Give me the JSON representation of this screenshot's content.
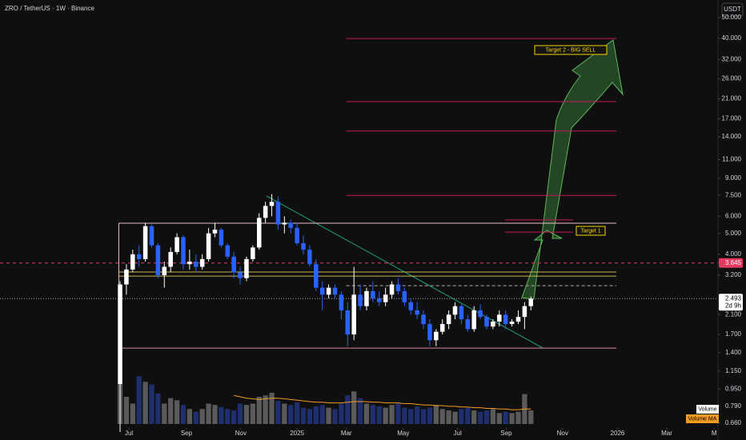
{
  "chart_data": {
    "type": "candlestick",
    "title": "ZRO / TetherUS · 1W · Binance",
    "currency": "USDT",
    "log_scale": true,
    "ylim": [
      0.643,
      60.3
    ],
    "yticks": [
      {
        "value": 50,
        "label": "50.000"
      },
      {
        "value": 40,
        "label": "40.000"
      },
      {
        "value": 32,
        "label": "32.000"
      },
      {
        "value": 26,
        "label": "26.000"
      },
      {
        "value": 21,
        "label": "21.000"
      },
      {
        "value": 17,
        "label": "17.000"
      },
      {
        "value": 14,
        "label": "14.000"
      },
      {
        "value": 11,
        "label": "11.000"
      },
      {
        "value": 9,
        "label": "9.000"
      },
      {
        "value": 7.5,
        "label": "7.500"
      },
      {
        "value": 6,
        "label": "6.000"
      },
      {
        "value": 5,
        "label": "5.000"
      },
      {
        "value": 4,
        "label": "4.000"
      },
      {
        "value": 3.2,
        "label": "3.200"
      },
      {
        "value": 2.1,
        "label": "2.100"
      },
      {
        "value": 1.7,
        "label": "1.700"
      },
      {
        "value": 1.4,
        "label": "1.400"
      },
      {
        "value": 1.15,
        "label": "1.150"
      },
      {
        "value": 0.95,
        "label": "0.950"
      },
      {
        "value": 0.79,
        "label": "0.790"
      },
      {
        "value": 0.66,
        "label": "0.660"
      }
    ],
    "xlim": [
      -19,
      94.6
    ],
    "xticks": [
      {
        "value": 1.4,
        "label": "Jul"
      },
      {
        "value": 10.5,
        "label": "Sep"
      },
      {
        "value": 19.1,
        "label": "Nov"
      },
      {
        "value": 28,
        "label": "2025"
      },
      {
        "value": 35.8,
        "label": "Mar"
      },
      {
        "value": 44.8,
        "label": "May"
      },
      {
        "value": 53.4,
        "label": "Jul"
      },
      {
        "value": 61.1,
        "label": "Sep"
      },
      {
        "value": 70,
        "label": "Nov"
      },
      {
        "value": 78.7,
        "label": "2026"
      },
      {
        "value": 86.5,
        "label": "Mar"
      },
      {
        "value": 94,
        "label": "M"
      }
    ],
    "up_color": "#ffffff",
    "down_color": "#2962ff",
    "ohlc": [
      [
        1.0,
        3.0,
        0.6,
        2.9
      ],
      [
        2.9,
        3.6,
        2.6,
        3.4
      ],
      [
        3.4,
        4.2,
        3.3,
        4.0
      ],
      [
        4.0,
        4.4,
        3.5,
        3.8
      ],
      [
        3.8,
        5.6,
        3.7,
        5.4
      ],
      [
        5.4,
        5.5,
        4.3,
        4.4
      ],
      [
        4.4,
        4.5,
        3.1,
        3.2
      ],
      [
        3.2,
        3.7,
        2.8,
        3.5
      ],
      [
        3.5,
        4.3,
        3.3,
        4.1
      ],
      [
        4.1,
        5.0,
        4.0,
        4.8
      ],
      [
        4.8,
        4.9,
        3.4,
        3.6
      ],
      [
        3.6,
        4.2,
        3.4,
        3.7
      ],
      [
        3.7,
        4.0,
        3.3,
        3.5
      ],
      [
        3.5,
        4.0,
        3.4,
        3.8
      ],
      [
        3.8,
        5.3,
        3.7,
        5.0
      ],
      [
        5.0,
        5.6,
        4.8,
        5.2
      ],
      [
        5.2,
        5.3,
        4.3,
        4.4
      ],
      [
        4.4,
        4.5,
        3.8,
        3.9
      ],
      [
        3.9,
        4.1,
        3.1,
        3.3
      ],
      [
        3.3,
        3.5,
        2.9,
        3.1
      ],
      [
        3.1,
        3.9,
        3.0,
        3.8
      ],
      [
        3.8,
        4.4,
        3.7,
        4.3
      ],
      [
        4.3,
        6.2,
        4.2,
        5.9
      ],
      [
        5.9,
        7.0,
        5.6,
        6.7
      ],
      [
        6.7,
        7.6,
        6.0,
        7.0
      ],
      [
        7.0,
        7.4,
        5.2,
        5.5
      ],
      [
        5.5,
        6.0,
        5.0,
        5.6
      ],
      [
        5.6,
        5.8,
        5.0,
        5.3
      ],
      [
        5.3,
        5.6,
        4.4,
        4.5
      ],
      [
        4.5,
        4.9,
        4.0,
        4.2
      ],
      [
        4.2,
        4.4,
        3.5,
        3.6
      ],
      [
        3.6,
        3.8,
        2.7,
        2.8
      ],
      [
        2.8,
        3.0,
        2.2,
        2.6
      ],
      [
        2.6,
        2.9,
        2.5,
        2.8
      ],
      [
        2.8,
        2.9,
        2.5,
        2.6
      ],
      [
        2.6,
        2.7,
        2.0,
        2.2
      ],
      [
        2.2,
        2.4,
        1.5,
        1.7
      ],
      [
        1.7,
        3.5,
        1.6,
        2.6
      ],
      [
        2.6,
        2.9,
        2.2,
        2.3
      ],
      [
        2.3,
        2.8,
        2.2,
        2.7
      ],
      [
        2.7,
        3.0,
        2.4,
        2.5
      ],
      [
        2.5,
        2.7,
        2.3,
        2.4
      ],
      [
        2.4,
        2.8,
        2.3,
        2.6
      ],
      [
        2.6,
        3.0,
        2.5,
        2.9
      ],
      [
        2.9,
        3.1,
        2.6,
        2.7
      ],
      [
        2.7,
        2.8,
        2.3,
        2.4
      ],
      [
        2.4,
        2.5,
        2.1,
        2.2
      ],
      [
        2.2,
        2.4,
        2.0,
        2.1
      ],
      [
        2.1,
        2.2,
        1.8,
        1.9
      ],
      [
        1.9,
        2.0,
        1.5,
        1.6
      ],
      [
        1.6,
        1.8,
        1.5,
        1.75
      ],
      [
        1.75,
        2.0,
        1.7,
        1.9
      ],
      [
        1.9,
        2.2,
        1.8,
        2.1
      ],
      [
        2.1,
        2.4,
        2.0,
        2.3
      ],
      [
        2.3,
        2.35,
        1.9,
        2.0
      ],
      [
        2.0,
        2.1,
        1.75,
        1.8
      ],
      [
        1.8,
        2.3,
        1.75,
        2.2
      ],
      [
        2.2,
        2.35,
        2.0,
        2.05
      ],
      [
        2.05,
        2.1,
        1.8,
        1.85
      ],
      [
        1.85,
        2.0,
        1.8,
        1.95
      ],
      [
        1.95,
        2.2,
        1.85,
        2.1
      ],
      [
        2.1,
        2.2,
        1.8,
        1.9
      ],
      [
        1.9,
        2.0,
        1.85,
        1.95
      ],
      [
        1.95,
        2.2,
        1.9,
        2.05
      ],
      [
        2.05,
        2.4,
        1.8,
        2.3
      ],
      [
        2.3,
        2.55,
        2.2,
        2.49
      ]
    ],
    "volume": [
      58,
      40,
      30,
      70,
      62,
      58,
      45,
      30,
      38,
      35,
      28,
      22,
      18,
      22,
      30,
      28,
      25,
      22,
      20,
      30,
      28,
      30,
      40,
      42,
      46,
      34,
      30,
      28,
      32,
      24,
      22,
      26,
      28,
      24,
      22,
      30,
      42,
      48,
      38,
      30,
      28,
      26,
      24,
      28,
      30,
      24,
      22,
      26,
      22,
      24,
      28,
      22,
      20,
      18,
      22,
      24,
      20,
      18,
      20,
      22,
      16,
      18,
      16,
      18,
      44,
      20
    ],
    "volume_ma": [
      null,
      null,
      null,
      null,
      null,
      null,
      null,
      null,
      null,
      null,
      null,
      null,
      null,
      null,
      null,
      null,
      null,
      null,
      42,
      40,
      38,
      37,
      36,
      37,
      38,
      38,
      37,
      36,
      35,
      34,
      33,
      32,
      32,
      31,
      31,
      31,
      32,
      33,
      33,
      33,
      32,
      32,
      31,
      31,
      31,
      30,
      30,
      29,
      28,
      28,
      27,
      27,
      26,
      26,
      25,
      25,
      24,
      24,
      23,
      23,
      22,
      22,
      21,
      21,
      22,
      22
    ],
    "volume_legend": "Volume",
    "volume_ma_legend": "Volume MA",
    "target_lines": [
      40,
      20.4,
      14.9,
      7.5
    ],
    "target_1_lines": [
      5.77,
      5.07
    ],
    "range_box": [
      1.47,
      5.57
    ],
    "support_lines": [
      3.31,
      3.17
    ],
    "dashed_line": 2.86,
    "price_marker": 3.645,
    "last_price": 2.493,
    "countdown": "2d 9h",
    "target_2_label": "Target 2 - BIG SELL",
    "target_1_label": "Target 1"
  }
}
